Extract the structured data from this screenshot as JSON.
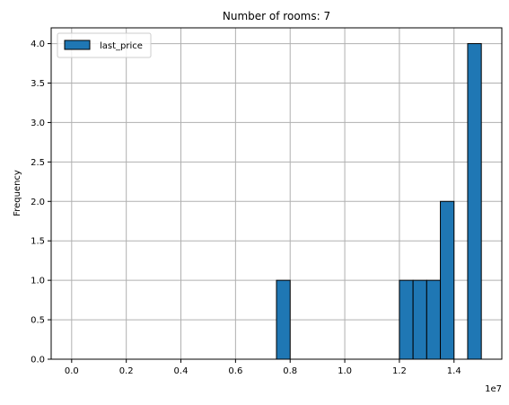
{
  "chart_data": {
    "type": "bar",
    "title": "Number of rooms: 7",
    "xlabel": "",
    "ylabel": "Frequency",
    "x_offset_label": "1e7",
    "xlim": [
      -0.075,
      1.575
    ],
    "ylim": [
      0,
      4.2
    ],
    "x_ticks": [
      0.0,
      0.2,
      0.4,
      0.6,
      0.8,
      1.0,
      1.2,
      1.4
    ],
    "x_tick_labels": [
      "0.0",
      "0.2",
      "0.4",
      "0.6",
      "0.8",
      "1.0",
      "1.2",
      "1.4"
    ],
    "y_ticks": [
      0.0,
      0.5,
      1.0,
      1.5,
      2.0,
      2.5,
      3.0,
      3.5,
      4.0
    ],
    "y_tick_labels": [
      "0.0",
      "0.5",
      "1.0",
      "1.5",
      "2.0",
      "2.5",
      "3.0",
      "3.5",
      "4.0"
    ],
    "grid": true,
    "legend_position": "top-left",
    "series": [
      {
        "name": "last_price",
        "color": "#1f77b4",
        "edgecolor": "#000000",
        "bin_width": 0.05,
        "bins": [
          {
            "x0": 0.75,
            "count": 1
          },
          {
            "x0": 1.2,
            "count": 1
          },
          {
            "x0": 1.25,
            "count": 1
          },
          {
            "x0": 1.3,
            "count": 1
          },
          {
            "x0": 1.35,
            "count": 2
          },
          {
            "x0": 1.45,
            "count": 4
          }
        ]
      }
    ]
  }
}
